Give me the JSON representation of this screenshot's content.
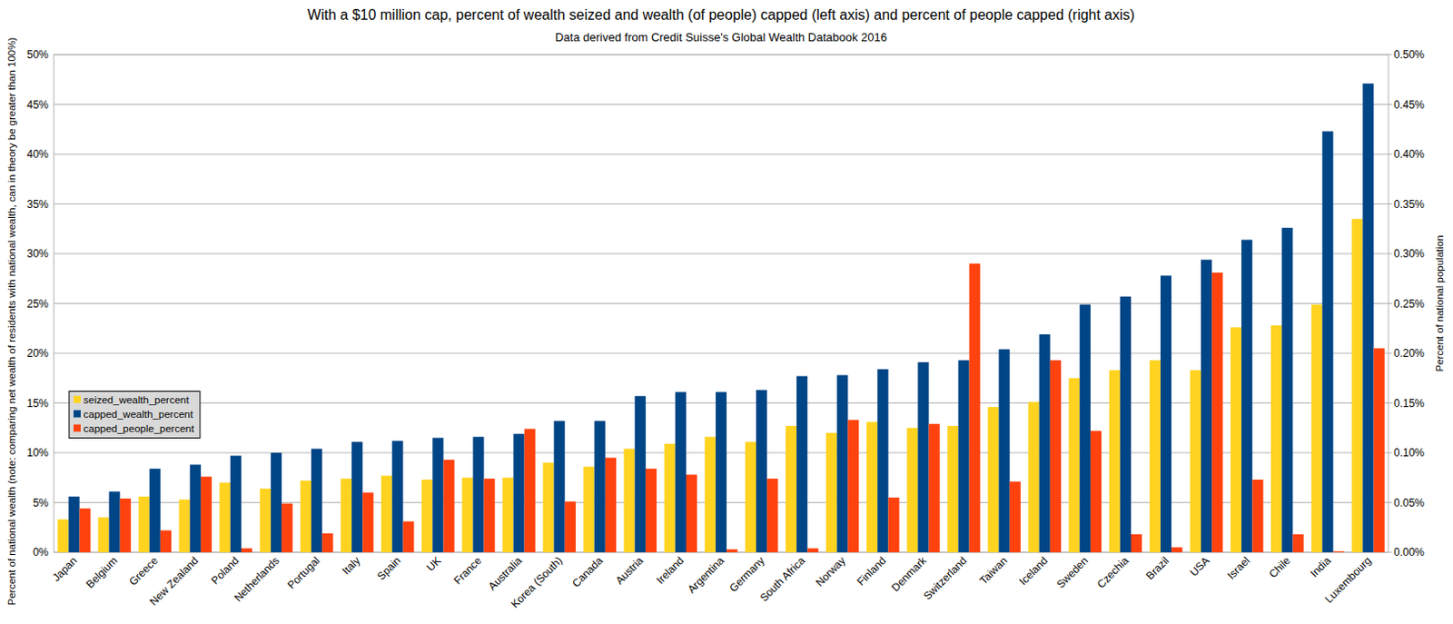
{
  "chart_data": {
    "type": "bar",
    "title": "With a $10 million cap, percent of wealth seized and wealth (of people) capped (left axis) and percent of people capped (right axis)",
    "subtitle": "Data derived from Credit Suisse's Global Wealth Databook 2016",
    "y_label": "Percent of national wealth (note: comparing net wealth of residents with national wealth, can in theory be greater than 100%)",
    "y2_label": "Percent of national population",
    "categories": [
      "Japan",
      "Belgium",
      "Greece",
      "New Zealand",
      "Poland",
      "Netherlands",
      "Portugal",
      "Italy",
      "Spain",
      "UK",
      "France",
      "Australia",
      "Korea (South)",
      "Canada",
      "Austria",
      "Ireland",
      "Argentina",
      "Germany",
      "South Africa",
      "Norway",
      "Finland",
      "Denmark",
      "Switzerland",
      "Taiwan",
      "Iceland",
      "Sweden",
      "Czechia",
      "Brazil",
      "USA",
      "Israel",
      "Chile",
      "India",
      "Luxembourg"
    ],
    "series": [
      {
        "name": "seized_wealth_percent",
        "color": "#ffd320",
        "values": [
          3.3,
          3.5,
          5.6,
          5.3,
          7.0,
          6.4,
          7.2,
          7.4,
          7.7,
          7.3,
          7.5,
          7.5,
          9.0,
          8.6,
          10.4,
          10.9,
          11.6,
          11.1,
          12.7,
          12.0,
          13.1,
          12.5,
          12.7,
          14.6,
          15.1,
          17.5,
          18.3,
          19.3,
          18.3,
          22.6,
          22.8,
          24.9,
          33.5
        ]
      },
      {
        "name": "capped_wealth_percent",
        "color": "#004586",
        "values": [
          5.6,
          6.1,
          8.4,
          8.8,
          9.7,
          10.0,
          10.4,
          11.1,
          11.2,
          11.5,
          11.6,
          11.9,
          13.2,
          13.2,
          15.7,
          16.1,
          16.1,
          16.3,
          17.7,
          17.8,
          18.4,
          19.1,
          19.3,
          20.4,
          21.9,
          24.9,
          25.7,
          27.8,
          29.4,
          31.4,
          32.6,
          42.3,
          47.1
        ]
      },
      {
        "name": "capped_people_percent",
        "color": "#ff420e",
        "axis": "y2",
        "values": [
          0.044,
          0.054,
          0.022,
          0.076,
          0.004,
          0.049,
          0.019,
          0.06,
          0.031,
          0.093,
          0.074,
          0.124,
          0.051,
          0.095,
          0.084,
          0.078,
          0.003,
          0.074,
          0.004,
          0.133,
          0.055,
          0.129,
          0.29,
          0.071,
          0.193,
          0.122,
          0.018,
          0.005,
          0.281,
          0.073,
          0.018,
          0.001,
          0.205
        ]
      }
    ],
    "ylim": [
      0,
      50
    ],
    "yticks": [
      {
        "value": 0,
        "label": "0%"
      },
      {
        "value": 5,
        "label": "5%"
      },
      {
        "value": 10,
        "label": "10%"
      },
      {
        "value": 15,
        "label": "15%"
      },
      {
        "value": 20,
        "label": "20%"
      },
      {
        "value": 25,
        "label": "25%"
      },
      {
        "value": 30,
        "label": "30%"
      },
      {
        "value": 35,
        "label": "35%"
      },
      {
        "value": 40,
        "label": "40%"
      },
      {
        "value": 45,
        "label": "45%"
      },
      {
        "value": 50,
        "label": "50%"
      }
    ],
    "y2lim": [
      0,
      0.5
    ],
    "y2ticks": [
      {
        "value": 0,
        "label": "0.00%"
      },
      {
        "value": 0.05,
        "label": "0.05%"
      },
      {
        "value": 0.1,
        "label": "0.10%"
      },
      {
        "value": 0.15,
        "label": "0.15%"
      },
      {
        "value": 0.2,
        "label": "0.20%"
      },
      {
        "value": 0.25,
        "label": "0.25%"
      },
      {
        "value": 0.3,
        "label": "0.30%"
      },
      {
        "value": 0.35,
        "label": "0.35%"
      },
      {
        "value": 0.4,
        "label": "0.40%"
      },
      {
        "value": 0.45,
        "label": "0.45%"
      },
      {
        "value": 0.5,
        "label": "0.50%"
      }
    ],
    "grid": true,
    "legend": "left"
  }
}
